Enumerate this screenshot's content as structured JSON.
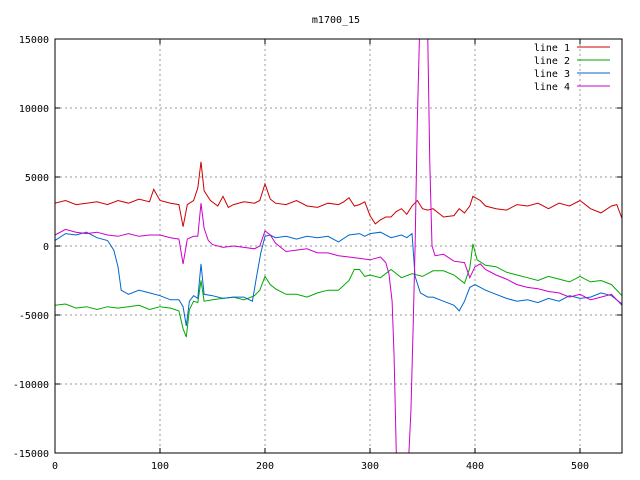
{
  "chart_data": {
    "type": "line",
    "title": "m1700_15",
    "xlabel": "",
    "ylabel": "",
    "xlim": [
      0,
      540
    ],
    "ylim": [
      -15000,
      15000
    ],
    "xticks": [
      0,
      100,
      200,
      300,
      400,
      500
    ],
    "yticks": [
      -15000,
      -10000,
      -5000,
      0,
      5000,
      10000,
      15000
    ],
    "grid": true,
    "legend": "top-right",
    "series": [
      {
        "name": "line 1",
        "color": "#cc0000",
        "points": [
          [
            0,
            3100
          ],
          [
            10,
            3300
          ],
          [
            20,
            3000
          ],
          [
            30,
            3100
          ],
          [
            40,
            3200
          ],
          [
            50,
            3000
          ],
          [
            60,
            3300
          ],
          [
            70,
            3100
          ],
          [
            80,
            3400
          ],
          [
            90,
            3200
          ],
          [
            94,
            4100
          ],
          [
            100,
            3300
          ],
          [
            110,
            3100
          ],
          [
            118,
            3000
          ],
          [
            122,
            1400
          ],
          [
            126,
            3000
          ],
          [
            132,
            3300
          ],
          [
            136,
            4200
          ],
          [
            139,
            6100
          ],
          [
            142,
            4000
          ],
          [
            148,
            3300
          ],
          [
            155,
            2900
          ],
          [
            160,
            3600
          ],
          [
            165,
            2800
          ],
          [
            170,
            3000
          ],
          [
            180,
            3200
          ],
          [
            190,
            3100
          ],
          [
            195,
            3300
          ],
          [
            200,
            4500
          ],
          [
            205,
            3400
          ],
          [
            210,
            3100
          ],
          [
            220,
            3000
          ],
          [
            230,
            3300
          ],
          [
            240,
            2900
          ],
          [
            250,
            2800
          ],
          [
            260,
            3100
          ],
          [
            270,
            3000
          ],
          [
            275,
            3200
          ],
          [
            280,
            3500
          ],
          [
            285,
            2900
          ],
          [
            290,
            3000
          ],
          [
            295,
            3200
          ],
          [
            300,
            2200
          ],
          [
            305,
            1600
          ],
          [
            310,
            1900
          ],
          [
            315,
            2100
          ],
          [
            320,
            2100
          ],
          [
            325,
            2500
          ],
          [
            330,
            2700
          ],
          [
            335,
            2300
          ],
          [
            340,
            2900
          ],
          [
            345,
            3300
          ],
          [
            350,
            2700
          ],
          [
            355,
            2600
          ],
          [
            360,
            2700
          ],
          [
            370,
            2100
          ],
          [
            380,
            2200
          ],
          [
            385,
            2700
          ],
          [
            390,
            2400
          ],
          [
            395,
            2900
          ],
          [
            398,
            3600
          ],
          [
            405,
            3300
          ],
          [
            410,
            2900
          ],
          [
            420,
            2700
          ],
          [
            430,
            2600
          ],
          [
            440,
            3000
          ],
          [
            450,
            2900
          ],
          [
            460,
            3100
          ],
          [
            470,
            2700
          ],
          [
            480,
            3100
          ],
          [
            490,
            2900
          ],
          [
            500,
            3300
          ],
          [
            510,
            2700
          ],
          [
            520,
            2400
          ],
          [
            530,
            2900
          ],
          [
            535,
            3000
          ],
          [
            540,
            2000
          ]
        ]
      },
      {
        "name": "line 2",
        "color": "#00aa00",
        "points": [
          [
            0,
            -4300
          ],
          [
            10,
            -4200
          ],
          [
            20,
            -4500
          ],
          [
            30,
            -4400
          ],
          [
            40,
            -4600
          ],
          [
            50,
            -4400
          ],
          [
            60,
            -4500
          ],
          [
            70,
            -4400
          ],
          [
            80,
            -4300
          ],
          [
            90,
            -4600
          ],
          [
            100,
            -4400
          ],
          [
            110,
            -4500
          ],
          [
            118,
            -4700
          ],
          [
            122,
            -6000
          ],
          [
            125,
            -6600
          ],
          [
            128,
            -4600
          ],
          [
            132,
            -4000
          ],
          [
            136,
            -4100
          ],
          [
            139,
            -2500
          ],
          [
            142,
            -4000
          ],
          [
            150,
            -3900
          ],
          [
            160,
            -3800
          ],
          [
            170,
            -3700
          ],
          [
            180,
            -3900
          ],
          [
            190,
            -3600
          ],
          [
            195,
            -3200
          ],
          [
            200,
            -2200
          ],
          [
            205,
            -2800
          ],
          [
            210,
            -3100
          ],
          [
            220,
            -3500
          ],
          [
            230,
            -3500
          ],
          [
            240,
            -3700
          ],
          [
            250,
            -3400
          ],
          [
            260,
            -3200
          ],
          [
            270,
            -3200
          ],
          [
            280,
            -2500
          ],
          [
            285,
            -1700
          ],
          [
            290,
            -1700
          ],
          [
            295,
            -2200
          ],
          [
            300,
            -2100
          ],
          [
            310,
            -2300
          ],
          [
            320,
            -1700
          ],
          [
            330,
            -2300
          ],
          [
            340,
            -2000
          ],
          [
            350,
            -2200
          ],
          [
            360,
            -1800
          ],
          [
            370,
            -1800
          ],
          [
            380,
            -2100
          ],
          [
            390,
            -2700
          ],
          [
            395,
            -1600
          ],
          [
            398,
            150
          ],
          [
            402,
            -1000
          ],
          [
            410,
            -1400
          ],
          [
            420,
            -1500
          ],
          [
            430,
            -1900
          ],
          [
            440,
            -2100
          ],
          [
            450,
            -2300
          ],
          [
            460,
            -2500
          ],
          [
            470,
            -2200
          ],
          [
            480,
            -2400
          ],
          [
            490,
            -2600
          ],
          [
            500,
            -2200
          ],
          [
            510,
            -2600
          ],
          [
            520,
            -2500
          ],
          [
            530,
            -2800
          ],
          [
            540,
            -3600
          ]
        ]
      },
      {
        "name": "line 3",
        "color": "#0066cc",
        "points": [
          [
            0,
            400
          ],
          [
            10,
            900
          ],
          [
            20,
            800
          ],
          [
            30,
            1000
          ],
          [
            40,
            600
          ],
          [
            50,
            400
          ],
          [
            56,
            -300
          ],
          [
            60,
            -1500
          ],
          [
            63,
            -3200
          ],
          [
            70,
            -3500
          ],
          [
            80,
            -3200
          ],
          [
            90,
            -3400
          ],
          [
            100,
            -3600
          ],
          [
            110,
            -3900
          ],
          [
            118,
            -3900
          ],
          [
            122,
            -4400
          ],
          [
            125,
            -5800
          ],
          [
            128,
            -4000
          ],
          [
            132,
            -3600
          ],
          [
            136,
            -3800
          ],
          [
            139,
            -1300
          ],
          [
            142,
            -3500
          ],
          [
            150,
            -3600
          ],
          [
            160,
            -3800
          ],
          [
            170,
            -3700
          ],
          [
            180,
            -3700
          ],
          [
            188,
            -4000
          ],
          [
            192,
            -2200
          ],
          [
            196,
            -500
          ],
          [
            200,
            700
          ],
          [
            205,
            800
          ],
          [
            210,
            600
          ],
          [
            220,
            700
          ],
          [
            230,
            500
          ],
          [
            240,
            700
          ],
          [
            250,
            600
          ],
          [
            260,
            700
          ],
          [
            270,
            300
          ],
          [
            280,
            800
          ],
          [
            290,
            900
          ],
          [
            295,
            700
          ],
          [
            300,
            900
          ],
          [
            310,
            1000
          ],
          [
            320,
            600
          ],
          [
            330,
            800
          ],
          [
            335,
            600
          ],
          [
            340,
            900
          ],
          [
            343,
            -2200
          ],
          [
            348,
            -3400
          ],
          [
            355,
            -3700
          ],
          [
            360,
            -3700
          ],
          [
            370,
            -4000
          ],
          [
            380,
            -4300
          ],
          [
            385,
            -4700
          ],
          [
            390,
            -4000
          ],
          [
            395,
            -3000
          ],
          [
            400,
            -2800
          ],
          [
            410,
            -3200
          ],
          [
            420,
            -3500
          ],
          [
            430,
            -3800
          ],
          [
            440,
            -4000
          ],
          [
            450,
            -3900
          ],
          [
            460,
            -4100
          ],
          [
            470,
            -3800
          ],
          [
            480,
            -4000
          ],
          [
            490,
            -3600
          ],
          [
            500,
            -3800
          ],
          [
            510,
            -3700
          ],
          [
            520,
            -3400
          ],
          [
            530,
            -3600
          ],
          [
            540,
            -4200
          ]
        ]
      },
      {
        "name": "line 4",
        "color": "#cc00cc",
        "points": [
          [
            0,
            800
          ],
          [
            10,
            1200
          ],
          [
            20,
            1000
          ],
          [
            30,
            900
          ],
          [
            40,
            1000
          ],
          [
            50,
            800
          ],
          [
            60,
            700
          ],
          [
            70,
            900
          ],
          [
            80,
            700
          ],
          [
            90,
            800
          ],
          [
            100,
            800
          ],
          [
            110,
            600
          ],
          [
            118,
            500
          ],
          [
            122,
            -1300
          ],
          [
            126,
            500
          ],
          [
            132,
            700
          ],
          [
            136,
            700
          ],
          [
            139,
            3100
          ],
          [
            142,
            1300
          ],
          [
            146,
            400
          ],
          [
            150,
            100
          ],
          [
            160,
            -100
          ],
          [
            170,
            0
          ],
          [
            180,
            -100
          ],
          [
            190,
            -200
          ],
          [
            195,
            0
          ],
          [
            200,
            1100
          ],
          [
            205,
            800
          ],
          [
            210,
            200
          ],
          [
            220,
            -400
          ],
          [
            230,
            -300
          ],
          [
            240,
            -200
          ],
          [
            250,
            -500
          ],
          [
            260,
            -500
          ],
          [
            270,
            -700
          ],
          [
            280,
            -800
          ],
          [
            290,
            -900
          ],
          [
            300,
            -1000
          ],
          [
            310,
            -800
          ],
          [
            315,
            -1200
          ],
          [
            318,
            -2000
          ],
          [
            321,
            -4000
          ],
          [
            323,
            -8000
          ],
          [
            325,
            -15000
          ],
          [
            337,
            -15000
          ],
          [
            339,
            -12000
          ],
          [
            341,
            -6000
          ],
          [
            343,
            0
          ],
          [
            345,
            9000
          ],
          [
            347,
            15000
          ],
          [
            355,
            15000
          ],
          [
            357,
            6000
          ],
          [
            359,
            0
          ],
          [
            362,
            -700
          ],
          [
            370,
            -600
          ],
          [
            380,
            -1100
          ],
          [
            390,
            -1200
          ],
          [
            395,
            -2300
          ],
          [
            400,
            -1500
          ],
          [
            405,
            -1300
          ],
          [
            410,
            -1700
          ],
          [
            420,
            -2100
          ],
          [
            430,
            -2400
          ],
          [
            440,
            -2800
          ],
          [
            450,
            -3000
          ],
          [
            460,
            -3100
          ],
          [
            470,
            -3300
          ],
          [
            480,
            -3400
          ],
          [
            490,
            -3700
          ],
          [
            500,
            -3500
          ],
          [
            510,
            -3900
          ],
          [
            520,
            -3700
          ],
          [
            530,
            -3500
          ],
          [
            540,
            -4300
          ]
        ]
      }
    ]
  }
}
